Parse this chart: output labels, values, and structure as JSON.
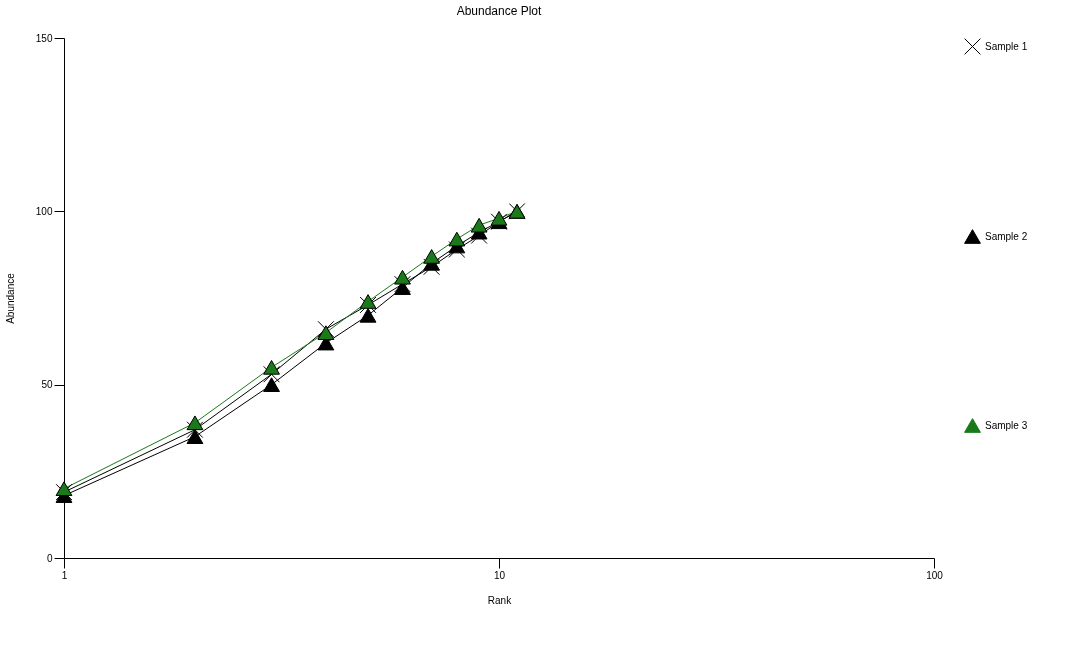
{
  "chart_data": {
    "type": "line",
    "title": "Abundance Plot",
    "xlabel": "Rank",
    "ylabel": "Abundance",
    "x": [
      1,
      2,
      3,
      4,
      5,
      6,
      7,
      8,
      9,
      10,
      11
    ],
    "series": [
      {
        "name": "Sample 1",
        "color": "#000000",
        "marker": "cross",
        "values": [
          19,
          37,
          53,
          66,
          73,
          79,
          84,
          89,
          93,
          97,
          100
        ]
      },
      {
        "name": "Sample 2",
        "color": "#000000",
        "marker": "triangle",
        "values": [
          18,
          35,
          50,
          62,
          70,
          78,
          85,
          90,
          94,
          97,
          100
        ]
      },
      {
        "name": "Sample 3",
        "color": "#1a7a1a",
        "marker": "triangle",
        "values": [
          20,
          39,
          55,
          65,
          74,
          81,
          87,
          92,
          96,
          98,
          100
        ]
      }
    ],
    "log": "x",
    "xlim": [
      1,
      100
    ],
    "xticks": [
      1,
      10,
      100
    ],
    "ylim": [
      0,
      150
    ],
    "yticks": [
      0,
      50,
      100,
      150
    ],
    "grid": false,
    "legend": "right",
    "line_style": "solid"
  }
}
